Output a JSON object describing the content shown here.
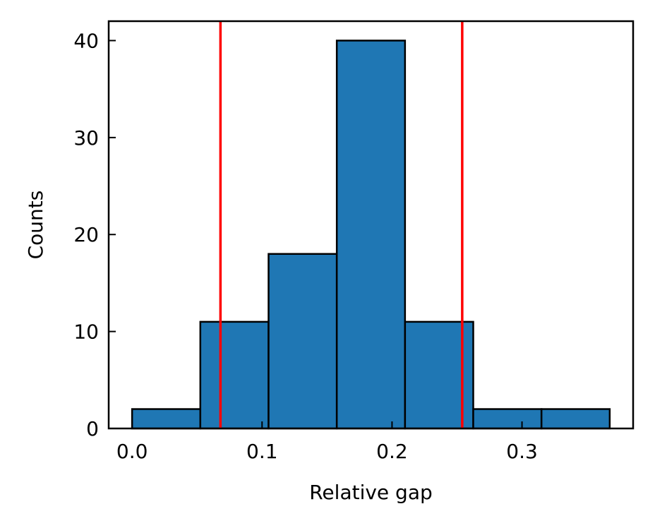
{
  "chart_data": {
    "type": "bar",
    "subtype": "histogram",
    "title": "",
    "xlabel": "Relative gap",
    "ylabel": "Counts",
    "xlim": [
      -0.018,
      0.3855
    ],
    "ylim": [
      0,
      42
    ],
    "xticks": [
      0.0,
      0.1,
      0.2,
      0.3
    ],
    "xtick_labels": [
      "0.0",
      "0.1",
      "0.2",
      "0.3"
    ],
    "yticks": [
      0,
      10,
      20,
      30,
      40
    ],
    "ytick_labels": [
      "0",
      "10",
      "20",
      "30",
      "40"
    ],
    "bins": [
      {
        "x0": 0.0,
        "x1": 0.0525,
        "count": 2
      },
      {
        "x0": 0.0525,
        "x1": 0.105,
        "count": 11
      },
      {
        "x0": 0.105,
        "x1": 0.1575,
        "count": 18
      },
      {
        "x0": 0.1575,
        "x1": 0.21,
        "count": 40
      },
      {
        "x0": 0.21,
        "x1": 0.2625,
        "count": 11
      },
      {
        "x0": 0.2625,
        "x1": 0.315,
        "count": 2
      },
      {
        "x0": 0.315,
        "x1": 0.3675,
        "count": 2
      }
    ],
    "vlines": [
      {
        "x": 0.068,
        "color": "#ff0000"
      },
      {
        "x": 0.254,
        "color": "#ff0000"
      }
    ],
    "bar_color": "#1f77b4",
    "edge_color": "#000000",
    "grid": false,
    "legend": "none"
  }
}
